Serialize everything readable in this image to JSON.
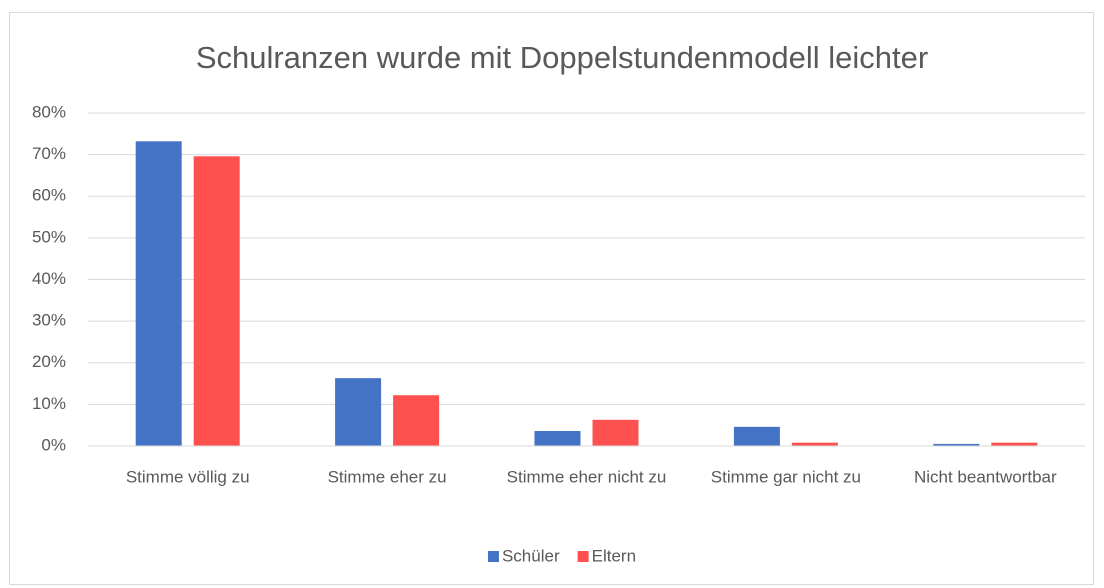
{
  "chart_data": {
    "type": "bar",
    "title": "Schulranzen wurde mit Doppelstundenmodell leichter",
    "categories": [
      "Stimme völlig zu",
      "Stimme eher zu",
      "Stimme eher nicht zu",
      "Stimme gar nicht zu",
      "Nicht beantwortbar"
    ],
    "series": [
      {
        "name": "Schüler",
        "color": "#4472c4",
        "values": [
          73.2,
          16.3,
          3.6,
          4.6,
          0.5
        ]
      },
      {
        "name": "Eltern",
        "color": "#ff5050",
        "values": [
          69.6,
          12.2,
          6.3,
          0.8,
          0.8
        ]
      }
    ],
    "ylim": [
      0,
      80
    ],
    "yticks": [
      {
        "value": 0,
        "label": "0%"
      },
      {
        "value": 10,
        "label": "10%"
      },
      {
        "value": 20,
        "label": "20%"
      },
      {
        "value": 30,
        "label": "30%"
      },
      {
        "value": 40,
        "label": "40%"
      },
      {
        "value": 50,
        "label": "50%"
      },
      {
        "value": 60,
        "label": "60%"
      },
      {
        "value": 70,
        "label": "70%"
      },
      {
        "value": 80,
        "label": "80%"
      }
    ],
    "grid": true,
    "legend": "bottom"
  }
}
